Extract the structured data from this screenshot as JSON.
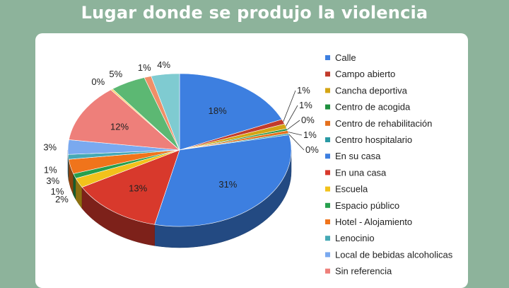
{
  "page": {
    "title": "Lugar donde se produjo la violencia",
    "background_color": "#8db39b",
    "card_color": "#ffffff"
  },
  "chart_data": {
    "type": "pie",
    "title": "",
    "legend_position": "right",
    "style": "3d",
    "slices": [
      {
        "name": "Calle",
        "value": 18,
        "label": "18%",
        "color": "#3d7fe0"
      },
      {
        "name": "Campo abierto",
        "value": 1,
        "label": "1%",
        "color": "#c23b2c"
      },
      {
        "name": "Cancha deportiva",
        "value": 1,
        "label": "1%",
        "color": "#d4a514"
      },
      {
        "name": "Centro de acogida",
        "value": 0.4,
        "label": "0%",
        "color": "#1e8f3e"
      },
      {
        "name": "Centro de rehabilitación",
        "value": 0.6,
        "label": "1%",
        "color": "#e5711d"
      },
      {
        "name": "Centro hospitalario",
        "value": 0.3,
        "label": "0%",
        "color": "#2a9aa4"
      },
      {
        "name": "En su casa",
        "value": 31,
        "label": "31%",
        "color": "#3d7fe0"
      },
      {
        "name": "En una casa",
        "value": 13,
        "label": "13%",
        "color": "#d8392c"
      },
      {
        "name": "Escuela",
        "value": 2,
        "label": "2%",
        "color": "#f2c21b"
      },
      {
        "name": "Espacio público",
        "value": 1,
        "label": "1%",
        "color": "#27a04d"
      },
      {
        "name": "Hotel - Alojamiento",
        "value": 3,
        "label": "3%",
        "color": "#f0741b"
      },
      {
        "name": "Lenocinio",
        "value": 1,
        "label": "1%",
        "color": "#45a9b5"
      },
      {
        "name": "Local de bebidas alcoholicas",
        "value": 3,
        "label": "3%",
        "color": "#7aa9ef"
      },
      {
        "name": "Sin referencia",
        "value": 12,
        "label": "12%",
        "color": "#ee7f7a"
      },
      {
        "name": "",
        "value": 0.3,
        "label": "0%",
        "color": "#f6d46d"
      },
      {
        "name": "",
        "value": 5,
        "label": "5%",
        "color": "#5cb873"
      },
      {
        "name": "",
        "value": 1,
        "label": "1%",
        "color": "#f08f68"
      },
      {
        "name": "",
        "value": 4,
        "label": "4%",
        "color": "#7fcbd1"
      }
    ]
  }
}
